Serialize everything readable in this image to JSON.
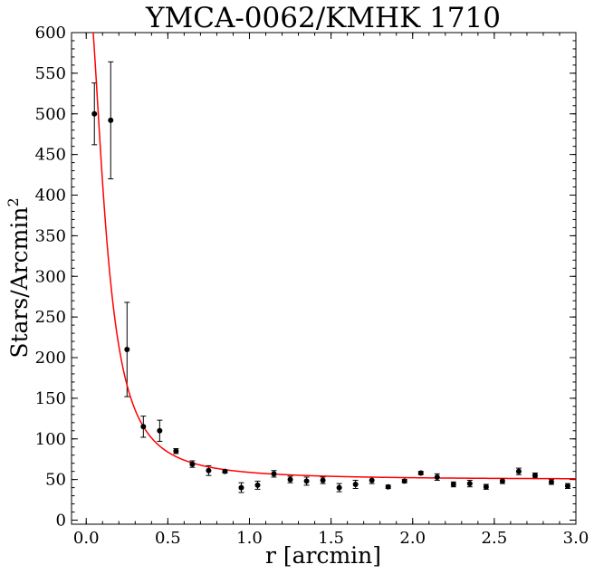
{
  "chart_data": {
    "type": "scatter",
    "title": "YMCA-0062/KMHK 1710",
    "xlabel": "r [arcmin]",
    "ylabel": "Stars/Arcmin",
    "ylabel_sup": "2",
    "xlim": [
      -0.09,
      3.0
    ],
    "ylim": [
      -5,
      600
    ],
    "x_ticks": [
      "0.0",
      "0.5",
      "1.0",
      "1.5",
      "2.0",
      "2.5",
      "3.0"
    ],
    "x_tick_values": [
      0.0,
      0.5,
      1.0,
      1.5,
      2.0,
      2.5,
      3.0
    ],
    "y_ticks": [
      "0",
      "50",
      "100",
      "150",
      "200",
      "250",
      "300",
      "350",
      "400",
      "450",
      "500",
      "550",
      "600"
    ],
    "y_tick_values": [
      0,
      50,
      100,
      150,
      200,
      250,
      300,
      350,
      400,
      450,
      500,
      550,
      600
    ],
    "grid": false,
    "series": [
      {
        "kind": "points_with_error_bars",
        "color": "#000000",
        "x": [
          0.05,
          0.15,
          0.25,
          0.35,
          0.45,
          0.55,
          0.65,
          0.75,
          0.85,
          0.95,
          1.05,
          1.15,
          1.25,
          1.35,
          1.45,
          1.55,
          1.65,
          1.75,
          1.85,
          1.95,
          2.05,
          2.15,
          2.25,
          2.35,
          2.45,
          2.55,
          2.65,
          2.75,
          2.85,
          2.95
        ],
        "y": [
          500,
          492,
          210,
          115,
          110,
          85,
          69,
          61,
          60,
          40,
          43,
          57,
          50,
          48,
          49,
          40,
          44,
          49,
          41,
          48,
          58,
          53,
          44,
          45,
          41,
          48,
          60,
          55,
          47,
          42
        ],
        "err": [
          38,
          72,
          58,
          13,
          13,
          3,
          4,
          6,
          2,
          6,
          5,
          4,
          4,
          5,
          4,
          5,
          5,
          4,
          2,
          2,
          2,
          4,
          3,
          4,
          3,
          3,
          4,
          3,
          3,
          3
        ]
      },
      {
        "kind": "fit_curve",
        "color": "#ff0000",
        "model": "King profile",
        "background": 50,
        "central_density": 620,
        "core_radius": 0.12,
        "x_range": [
          0.0,
          3.0
        ]
      }
    ]
  }
}
